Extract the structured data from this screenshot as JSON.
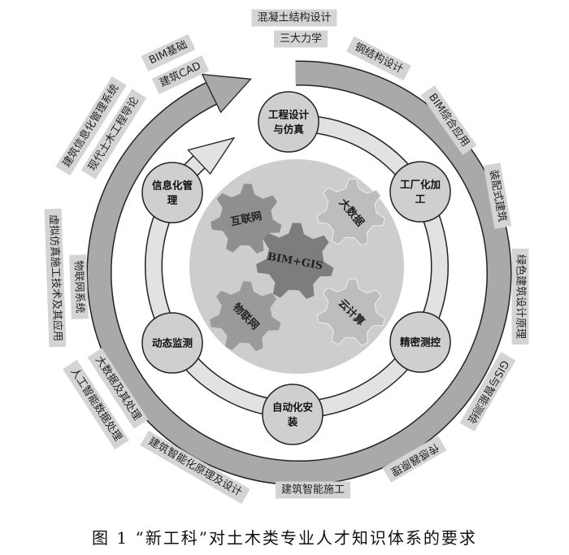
{
  "colors": {
    "outer_ring": "#a9a9a9",
    "inner_ring": "#e2e2e2",
    "core_disc": "#cdcdcd",
    "label_box": "#d4d4d4",
    "gear_dark": "#8a8a8a",
    "gear_mid": "#a3a3a3",
    "gear_light": "#bdbdbd"
  },
  "outer_labels": [
    "混凝土结构设计",
    "三大力学",
    "钢结构设计",
    "BIM综合应用",
    "装配式建筑",
    "绿色建筑设计原理",
    "GIS与智能测绘",
    "传感器原理",
    "建筑智能施工",
    "建筑智能化原理及设计",
    "大数据及其处理",
    "人工智能数据处理",
    "虚拟仿真施工技术及其应用",
    "物联网系统",
    "建筑信息化管理系统",
    "现代土木工程导论",
    "BIM基础",
    "建筑CAD"
  ],
  "stages": [
    {
      "line1": "工程设计",
      "line2": "与仿真"
    },
    {
      "line1": "工厂化加",
      "line2": "工"
    },
    {
      "line1": "精密测控",
      "line2": ""
    },
    {
      "line1": "自动化安",
      "line2": "装"
    },
    {
      "line1": "动态监测",
      "line2": ""
    },
    {
      "line1": "信息化管",
      "line2": "理"
    }
  ],
  "gears": [
    "互联网",
    "大数据",
    "BIM+GIS",
    "物联网",
    "云计算"
  ],
  "caption": "图 1 “新工科”对土木类专业人才知识体系的要求"
}
